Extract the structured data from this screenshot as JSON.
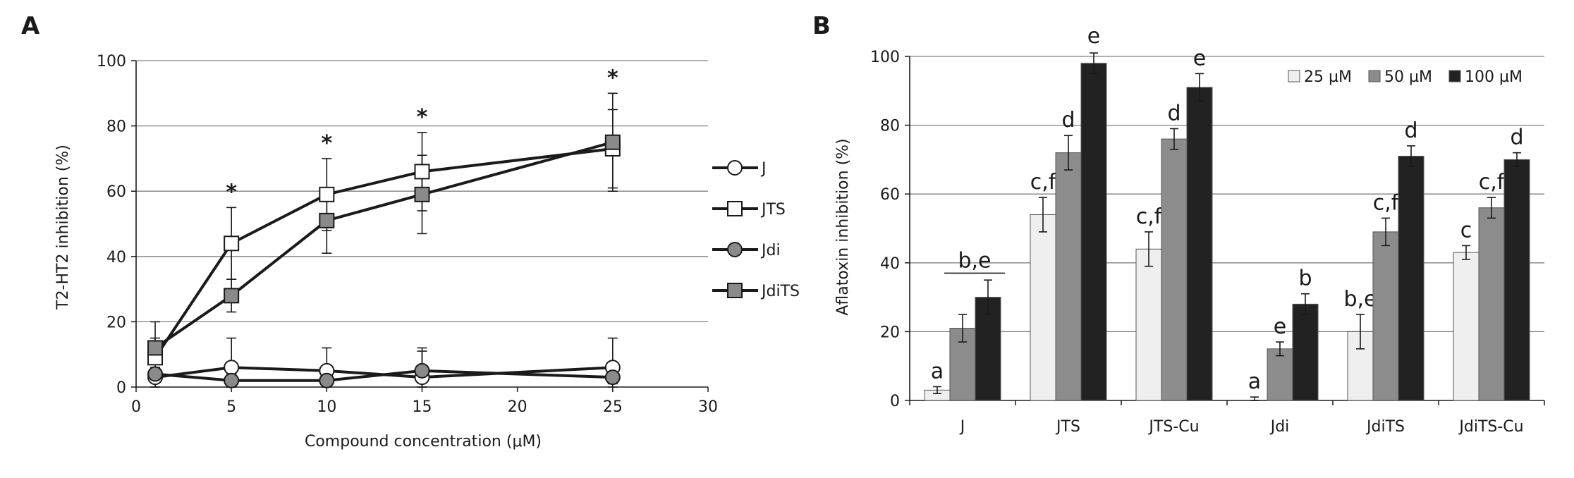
{
  "panels": {
    "a_label": "A",
    "b_label": "B"
  },
  "colors": {
    "line": "#1a1a1a",
    "grid": "#808080",
    "open_fill": "#ffffff",
    "gray_fill": "#8a8a8a",
    "bar_25": "#efefef",
    "bar_50": "#8c8c8c",
    "bar_100": "#222222"
  },
  "chart_data": [
    {
      "type": "line",
      "panel": "A",
      "title": "",
      "xlabel": "Compound concentration (μM)",
      "ylabel": "T2-HT2 inhibition (%)",
      "xlim": [
        0,
        30
      ],
      "ylim": [
        0,
        100
      ],
      "xticks": [
        "0",
        "5",
        "10",
        "15",
        "20",
        "25",
        "30"
      ],
      "yticks": [
        "0",
        "20",
        "40",
        "60",
        "80",
        "100"
      ],
      "grid": "horizontal",
      "legend_position": "right",
      "x": [
        1,
        5,
        10,
        15,
        25
      ],
      "series": [
        {
          "name": "J",
          "marker": "circle",
          "fill": "open",
          "values": [
            3,
            6,
            5,
            3,
            6
          ],
          "errors": [
            3,
            9,
            7,
            8,
            9
          ]
        },
        {
          "name": "JTS",
          "marker": "square",
          "fill": "open",
          "values": [
            9,
            44,
            59,
            66,
            73
          ],
          "errors": [
            11,
            11,
            11,
            12,
            12
          ]
        },
        {
          "name": "Jdi",
          "marker": "circle",
          "fill": "gray",
          "values": [
            4,
            2,
            2,
            5,
            3
          ],
          "errors": [
            2,
            2,
            2,
            7,
            2
          ]
        },
        {
          "name": "JdiTS",
          "marker": "square",
          "fill": "gray",
          "values": [
            12,
            28,
            51,
            59,
            75
          ],
          "errors": [
            3,
            5,
            10,
            12,
            15
          ]
        }
      ],
      "annotations": [
        {
          "x": 5,
          "text": "*"
        },
        {
          "x": 10,
          "text": "*"
        },
        {
          "x": 15,
          "text": "*"
        },
        {
          "x": 25,
          "text": "*"
        }
      ]
    },
    {
      "type": "bar",
      "panel": "B",
      "title": "",
      "xlabel": "",
      "ylabel": "Aflatoxin inhibition (%)",
      "ylim": [
        0,
        100
      ],
      "yticks": [
        "0",
        "20",
        "40",
        "60",
        "80",
        "100"
      ],
      "grid": "horizontal",
      "legend_position": "top-right",
      "categories": [
        "J",
        "JTS",
        "JTS-Cu",
        "Jdi",
        "JdiTS",
        "JdiTS-Cu"
      ],
      "series": [
        {
          "name": "25 µM",
          "values": [
            3,
            54,
            44,
            0,
            20,
            43
          ],
          "errors": [
            1,
            5,
            5,
            1,
            5,
            2
          ]
        },
        {
          "name": "50 µM",
          "values": [
            21,
            72,
            76,
            15,
            49,
            56
          ],
          "errors": [
            4,
            5,
            3,
            2,
            4,
            3
          ]
        },
        {
          "name": "100 µM",
          "values": [
            30,
            98,
            91,
            28,
            71,
            70
          ],
          "errors": [
            5,
            3,
            4,
            3,
            3,
            2
          ]
        }
      ],
      "bar_labels": [
        [
          "a",
          "c,f",
          "c,f",
          "a",
          "b,e",
          "c"
        ],
        [
          "",
          "d",
          "d",
          "e",
          "c,f",
          "c,f"
        ],
        [
          "",
          "e",
          "e",
          "b",
          "d",
          "d"
        ]
      ],
      "group_label": {
        "category": "J",
        "text": "b,e"
      }
    }
  ]
}
